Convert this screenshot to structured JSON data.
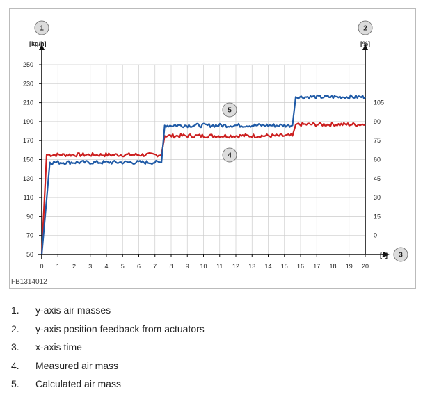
{
  "figure": {
    "id": "FB1314012",
    "callouts": [
      "1",
      "2",
      "3",
      "4",
      "5"
    ],
    "left_axis_unit": "[kg/h]",
    "right_axis_unit": "[%]",
    "x_axis_unit": "[s]"
  },
  "legend": [
    {
      "number": "1.",
      "text": "y-axis air masses"
    },
    {
      "number": "2.",
      "text": "y-axis position feedback from actuators"
    },
    {
      "number": "3.",
      "text": "x-axis time"
    },
    {
      "number": "4.",
      "text": "Measured air mass"
    },
    {
      "number": "5.",
      "text": "Calculated air mass"
    }
  ],
  "colors": {
    "measured": "#cc1f1f",
    "calculated": "#1f5aa6",
    "plot_border": "#bbbbbb",
    "grid": "#cccccc",
    "panel_background": "#ffffff",
    "callout_fill": "#dcdcdc"
  },
  "chart_data": {
    "type": "line",
    "grid": true,
    "x_ticks": [
      0,
      1,
      2,
      3,
      4,
      5,
      6,
      7,
      8,
      9,
      10,
      11,
      12,
      13,
      14,
      15,
      16,
      17,
      18,
      19,
      20
    ],
    "xlim": [
      0,
      20
    ],
    "ylim": [
      50,
      250
    ],
    "y_ticks_left": [
      50,
      70,
      90,
      110,
      130,
      150,
      170,
      190,
      210,
      230,
      250
    ],
    "y_ticks_right": [
      0,
      15,
      30,
      45,
      60,
      75,
      90,
      105
    ],
    "y_right_map": {
      "value_at_0": 70,
      "kg_per_unit": 1.3333
    },
    "series": [
      {
        "callout": "4",
        "color_key": "measured",
        "x": [
          0,
          0.3,
          7.4,
          7.6,
          15.5,
          15.7,
          20
        ],
        "y": [
          50,
          155,
          155,
          175,
          175,
          187,
          187
        ]
      },
      {
        "callout": "5",
        "color_key": "calculated",
        "x": [
          0,
          0.5,
          7.4,
          7.6,
          15.5,
          15.7,
          20
        ],
        "y": [
          50,
          147,
          147,
          186,
          186,
          216,
          216
        ]
      }
    ]
  }
}
